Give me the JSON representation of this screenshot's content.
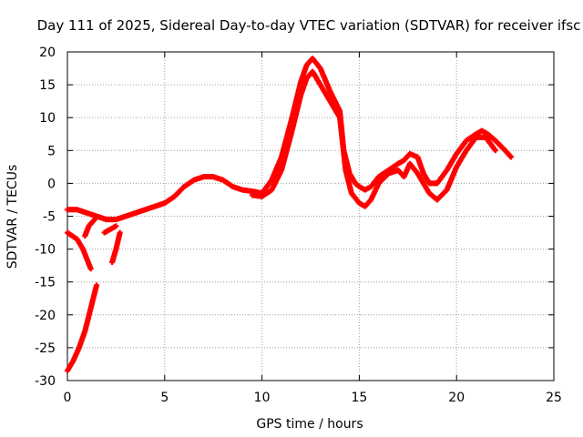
{
  "chart_data": {
    "type": "scatter",
    "title": "Day 111 of 2025, Sidereal Day-to-day VTEC variation (SDTVAR) for receiver ifsc",
    "xlabel": "GPS time / hours",
    "ylabel": "SDTVAR / TECUs",
    "xlim": [
      0,
      25
    ],
    "ylim": [
      -30,
      20
    ],
    "xticks": [
      0,
      5,
      10,
      15,
      20,
      25
    ],
    "yticks": [
      -30,
      -25,
      -20,
      -15,
      -10,
      -5,
      0,
      5,
      10,
      15,
      20
    ],
    "grid": true,
    "legend": "none",
    "marker": "+",
    "series": [
      {
        "name": "main-trace-upper",
        "color": "#ff0000",
        "x": [
          0.0,
          0.5,
          1.0,
          1.5,
          2.0,
          2.5,
          3.0,
          3.5,
          4.0,
          4.5,
          5.0,
          5.5,
          6.0,
          6.5,
          7.0,
          7.5,
          8.0,
          8.5,
          9.0,
          9.5,
          10.0,
          10.5,
          11.0,
          11.5,
          12.0,
          12.3,
          12.6,
          13.0,
          13.5,
          14.0,
          14.2,
          14.5,
          14.8,
          15.0,
          15.3,
          15.6,
          16.0,
          16.5,
          17.0,
          17.3,
          17.6,
          18.0,
          18.3,
          18.6,
          19.0,
          19.5,
          20.0,
          20.5,
          21.0,
          21.3,
          21.6,
          22.0,
          22.5,
          22.8
        ],
        "values": [
          -4.0,
          -4.0,
          -4.5,
          -5.0,
          -5.5,
          -5.5,
          -5.0,
          -4.5,
          -4.0,
          -3.5,
          -3.0,
          -2.0,
          -0.5,
          0.5,
          1.0,
          1.0,
          0.5,
          -0.5,
          -1.0,
          -1.2,
          -1.5,
          0.5,
          4.0,
          9.5,
          15.5,
          18.0,
          19.0,
          17.5,
          14.0,
          11.0,
          5.0,
          1.5,
          0.0,
          -0.5,
          -1.0,
          -0.5,
          1.0,
          2.0,
          3.0,
          3.5,
          4.5,
          4.0,
          1.5,
          0.0,
          0.0,
          2.0,
          4.5,
          6.5,
          7.5,
          8.0,
          7.5,
          6.5,
          5.0,
          4.0
        ]
      },
      {
        "name": "main-trace-lower",
        "color": "#ff0000",
        "x": [
          9.5,
          10.0,
          10.5,
          11.0,
          11.5,
          12.0,
          12.3,
          12.6,
          13.0,
          13.5,
          14.0,
          14.3,
          14.6,
          15.0,
          15.3,
          15.6,
          16.0,
          16.5,
          17.0,
          17.3,
          17.6,
          18.0,
          18.3,
          18.6,
          19.0,
          19.5,
          20.0,
          20.5,
          21.0,
          21.5,
          22.0
        ],
        "values": [
          -1.8,
          -2.0,
          -1.0,
          2.0,
          7.5,
          13.5,
          16.0,
          17.0,
          15.0,
          12.5,
          10.0,
          2.0,
          -1.5,
          -3.0,
          -3.5,
          -2.5,
          0.0,
          1.5,
          2.0,
          1.0,
          3.0,
          1.5,
          0.0,
          -1.5,
          -2.5,
          -1.0,
          2.5,
          5.0,
          7.0,
          7.0,
          5.0
        ]
      },
      {
        "name": "steep-segment-lower",
        "color": "#ff0000",
        "x": [
          0.0,
          0.3,
          0.6,
          0.9,
          1.2,
          1.5
        ],
        "values": [
          -28.5,
          -27.0,
          -25.0,
          -22.5,
          -19.0,
          -15.5
        ]
      },
      {
        "name": "steep-segment-upper",
        "color": "#ff0000",
        "x": [
          0.0,
          0.5,
          0.8,
          1.0,
          1.2
        ],
        "values": [
          -7.5,
          -8.5,
          -10.0,
          -11.5,
          -13.0
        ]
      },
      {
        "name": "short-segment-1",
        "color": "#ff0000",
        "x": [
          0.9,
          1.1,
          1.4
        ],
        "values": [
          -8.0,
          -6.5,
          -5.5
        ]
      },
      {
        "name": "short-segment-2",
        "color": "#ff0000",
        "x": [
          2.3,
          2.5,
          2.7
        ],
        "values": [
          -12.0,
          -10.0,
          -7.5
        ]
      },
      {
        "name": "short-segment-3",
        "color": "#ff0000",
        "x": [
          1.9,
          2.2,
          2.5
        ],
        "values": [
          -7.5,
          -7.0,
          -6.5
        ]
      }
    ]
  }
}
